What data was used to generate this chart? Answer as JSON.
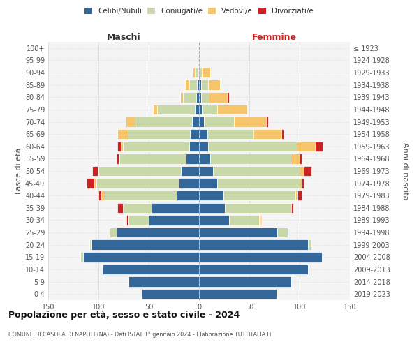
{
  "age_groups": [
    "0-4",
    "5-9",
    "10-14",
    "15-19",
    "20-24",
    "25-29",
    "30-34",
    "35-39",
    "40-44",
    "45-49",
    "50-54",
    "55-59",
    "60-64",
    "65-69",
    "70-74",
    "75-79",
    "80-84",
    "85-89",
    "90-94",
    "95-99",
    "100+"
  ],
  "birth_years": [
    "2019-2023",
    "2014-2018",
    "2009-2013",
    "2004-2008",
    "1999-2003",
    "1994-1998",
    "1989-1993",
    "1984-1988",
    "1979-1983",
    "1974-1978",
    "1969-1973",
    "1964-1968",
    "1959-1963",
    "1954-1958",
    "1949-1953",
    "1944-1948",
    "1939-1943",
    "1934-1938",
    "1929-1933",
    "1924-1928",
    "≤ 1923"
  ],
  "maschi": {
    "celibi": [
      57,
      70,
      96,
      115,
      107,
      82,
      50,
      47,
      22,
      20,
      18,
      13,
      10,
      9,
      7,
      4,
      3,
      2,
      1,
      0,
      0
    ],
    "coniugati": [
      0,
      0,
      0,
      3,
      2,
      7,
      20,
      28,
      72,
      82,
      82,
      66,
      66,
      62,
      57,
      38,
      13,
      8,
      3,
      0,
      0
    ],
    "vedovi": [
      0,
      0,
      0,
      0,
      0,
      0,
      1,
      1,
      3,
      2,
      1,
      1,
      2,
      10,
      9,
      4,
      3,
      4,
      2,
      0,
      0
    ],
    "divorziati": [
      0,
      0,
      0,
      0,
      0,
      0,
      1,
      5,
      3,
      8,
      5,
      2,
      3,
      0,
      0,
      0,
      0,
      0,
      0,
      0,
      0
    ]
  },
  "femmine": {
    "nubili": [
      77,
      92,
      108,
      122,
      108,
      78,
      30,
      26,
      24,
      18,
      14,
      11,
      9,
      8,
      5,
      3,
      2,
      2,
      1,
      0,
      0
    ],
    "coniugate": [
      0,
      0,
      0,
      1,
      3,
      10,
      30,
      65,
      72,
      82,
      86,
      80,
      88,
      46,
      30,
      15,
      8,
      7,
      2,
      0,
      0
    ],
    "vedove": [
      0,
      0,
      0,
      0,
      0,
      0,
      1,
      1,
      2,
      2,
      4,
      9,
      18,
      28,
      32,
      30,
      18,
      12,
      8,
      1,
      0
    ],
    "divorziate": [
      0,
      0,
      0,
      0,
      0,
      0,
      1,
      2,
      4,
      2,
      8,
      2,
      8,
      2,
      2,
      0,
      2,
      0,
      0,
      0,
      0
    ]
  },
  "colors": {
    "celibi_nubili": "#336699",
    "coniugati": "#C8D8A8",
    "vedovi": "#F5C46B",
    "divorziati": "#CC2222"
  },
  "legend_labels": [
    "Celibi/Nubili",
    "Coniugati/e",
    "Vedovi/e",
    "Divorziati/e"
  ],
  "title": "Popolazione per età, sesso e stato civile - 2024",
  "subtitle": "COMUNE DI CASOLA DI NAPOLI (NA) - Dati ISTAT 1° gennaio 2024 - Elaborazione TUTTITALIA.IT",
  "label_maschi": "Maschi",
  "label_femmine": "Femmine",
  "ylabel_left": "Fasce di età",
  "ylabel_right": "Anni di nascita",
  "xlim": 150,
  "bg_color": "#f4f4f4",
  "grid_color": "#cccccc"
}
